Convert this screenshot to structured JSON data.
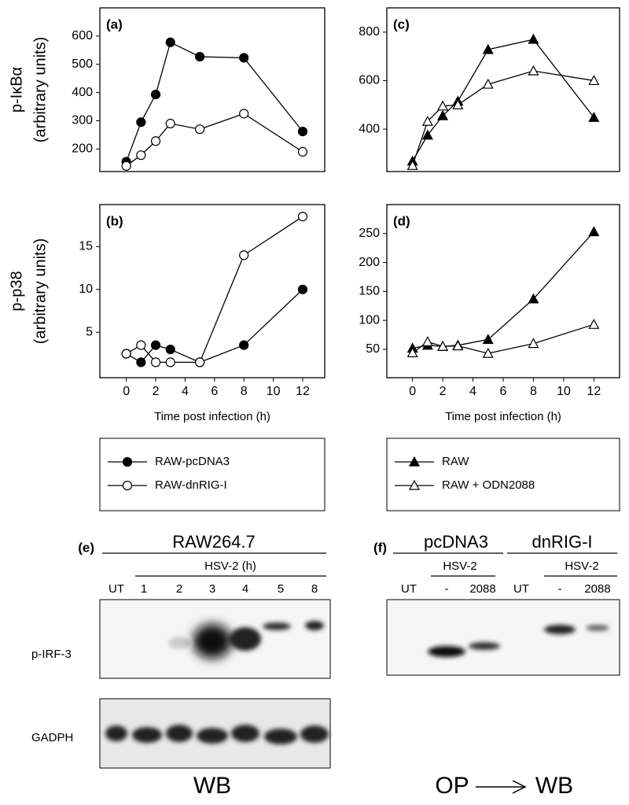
{
  "chart_data": [
    {
      "type": "line",
      "label": "(a)",
      "ylabel": [
        "p-IκBα",
        "(arbitrary units)"
      ],
      "x": [
        0,
        1,
        2,
        3,
        5,
        8,
        12
      ],
      "xlim": [
        -1.8,
        13.5
      ],
      "ylim": [
        120,
        700
      ],
      "yticks": [
        200,
        300,
        400,
        500,
        600
      ],
      "series": [
        {
          "name": "RAW-pcDNA3",
          "color": "#000000",
          "marker": "circle",
          "filled": true,
          "values": [
            155,
            295,
            393,
            578,
            527,
            523,
            262
          ]
        },
        {
          "name": "RAW-dnRIG-I",
          "color": "#000000",
          "marker": "circle",
          "filled": false,
          "values": [
            140,
            178,
            228,
            290,
            270,
            325,
            190
          ]
        }
      ]
    },
    {
      "type": "line",
      "label": "(b)",
      "ylabel": [
        "p-p38",
        "(arbitrary units)"
      ],
      "xlabel": "Time post infection (h)",
      "x": [
        0,
        1,
        2,
        3,
        5,
        8,
        12
      ],
      "xlim": [
        -1.8,
        13.5
      ],
      "xticks": [
        0,
        2,
        4,
        6,
        8,
        10,
        12
      ],
      "ylim": [
        -0.3,
        19.9
      ],
      "yticks": [
        5,
        10,
        15
      ],
      "series": [
        {
          "name": "RAW-pcDNA3",
          "color": "#000000",
          "marker": "circle",
          "filled": true,
          "values": [
            2.5,
            1.5,
            3.5,
            3.0,
            1.5,
            3.5,
            10
          ]
        },
        {
          "name": "RAW-dnRIG-I",
          "color": "#000000",
          "marker": "circle",
          "filled": false,
          "values": [
            2.5,
            3.5,
            1.5,
            1.5,
            1.5,
            14,
            18.5
          ]
        }
      ]
    },
    {
      "type": "line",
      "label": "(c)",
      "x": [
        0,
        1,
        2,
        3,
        5,
        8,
        12
      ],
      "xlim": [
        -1.7,
        13.7
      ],
      "ylim": [
        225,
        900
      ],
      "yticks": [
        400,
        600,
        800
      ],
      "series": [
        {
          "name": "RAW",
          "color": "#000000",
          "marker": "triangle",
          "filled": true,
          "values": [
            268,
            375,
            455,
            515,
            728,
            770,
            448
          ]
        },
        {
          "name": "RAW + ODN2088",
          "color": "#000000",
          "marker": "triangle",
          "filled": false,
          "values": [
            250,
            432,
            495,
            500,
            585,
            640,
            600
          ]
        }
      ]
    },
    {
      "type": "line",
      "label": "(d)",
      "xlabel": "Time post infection (h)",
      "x": [
        0,
        1,
        2,
        3,
        5,
        8,
        12
      ],
      "xlim": [
        -1.7,
        13.7
      ],
      "xticks": [
        0,
        2,
        4,
        6,
        8,
        10,
        12
      ],
      "ylim": [
        1,
        300
      ],
      "yticks": [
        50,
        100,
        150,
        200,
        250
      ],
      "series": [
        {
          "name": "RAW",
          "color": "#000000",
          "marker": "triangle",
          "filled": true,
          "values": [
            52,
            57,
            55,
            57,
            67,
            137,
            253
          ]
        },
        {
          "name": "RAW + ODN2088",
          "color": "#000000",
          "marker": "triangle",
          "filled": false,
          "values": [
            44,
            63,
            55,
            56,
            43,
            60,
            93
          ]
        }
      ]
    }
  ],
  "blots": {
    "e": {
      "label": "(e)",
      "title": "RAW264.7",
      "treatment": "HSV-2 (h)",
      "lanes": [
        "UT",
        "1",
        "2",
        "3",
        "4",
        "5",
        "8"
      ],
      "rows": [
        "p-IRF-3",
        "GADPH"
      ],
      "method": "WB"
    },
    "f": {
      "label": "(f)",
      "groups": [
        "pcDNA3",
        "dnRIG-I"
      ],
      "treatment": [
        "HSV-2",
        "HSV-2"
      ],
      "lanes": [
        "UT",
        "-",
        "2088",
        "UT",
        "-",
        "2088"
      ],
      "method": [
        "OP",
        "WB"
      ]
    }
  }
}
